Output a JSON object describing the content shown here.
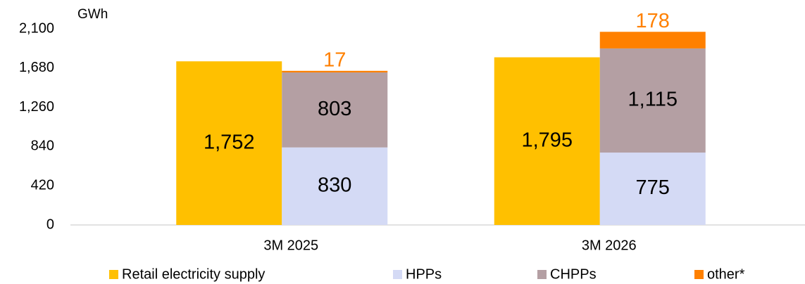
{
  "chart_data": {
    "type": "bar",
    "y_label": "GWh",
    "categories": [
      "3M 2025",
      "3M 2026"
    ],
    "series": [
      {
        "name": "Retail electricity supply",
        "color": "#FFC000",
        "values": [
          1752,
          1795
        ],
        "value_labels": [
          "1,752",
          "1,795"
        ],
        "stack": "retail"
      },
      {
        "name": "HPPs",
        "color": "#D4DAF5",
        "values": [
          830,
          775
        ],
        "stack": "generation"
      },
      {
        "name": "CHPPs",
        "color": "#B49FA3",
        "values": [
          803,
          1115
        ],
        "value_labels": [
          "803",
          "1,115"
        ],
        "stack": "generation"
      },
      {
        "name": "other*",
        "color": "#FF8000",
        "values": [
          17,
          178
        ],
        "stack": "generation",
        "label_color": "#FF8000",
        "label_position": "above"
      }
    ],
    "ylim": [
      0,
      2100
    ],
    "yticks": [
      0,
      420,
      840,
      {
        "value": 1260,
        "label": "1,260"
      },
      {
        "value": 1680,
        "label": "1,680"
      },
      {
        "value": 2100,
        "label": "2,100"
      }
    ],
    "grid": false,
    "legend": "bottom"
  }
}
